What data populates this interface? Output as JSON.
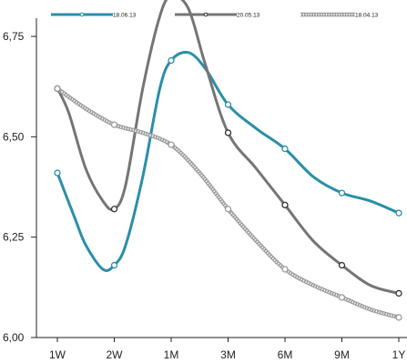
{
  "chart_data": {
    "type": "line",
    "categories": [
      "1W",
      "2W",
      "1M",
      "3M",
      "6M",
      "9M",
      "1Y"
    ],
    "ylim": [
      6.0,
      6.75
    ],
    "yticks": [
      "6,00",
      "6,25",
      "6,50",
      "6,75"
    ],
    "grid": false,
    "legend_position": "top",
    "series": [
      {
        "name": "18.06.13",
        "color": "#2a8fa8",
        "style": "solid",
        "values": [
          6.41,
          6.18,
          6.69,
          6.58,
          6.47,
          6.36,
          6.31
        ],
        "curve": [
          [
            0,
            6.41
          ],
          [
            0.3,
            6.3
          ],
          [
            0.5,
            6.23
          ],
          [
            0.8,
            6.17
          ],
          [
            1.0,
            6.18
          ],
          [
            1.2,
            6.23
          ],
          [
            1.5,
            6.4
          ],
          [
            1.8,
            6.62
          ],
          [
            2.0,
            6.69
          ],
          [
            2.3,
            6.71
          ],
          [
            2.6,
            6.67
          ],
          [
            3.0,
            6.58
          ],
          [
            3.5,
            6.52
          ],
          [
            4.0,
            6.47
          ],
          [
            4.5,
            6.4
          ],
          [
            5.0,
            6.36
          ],
          [
            5.5,
            6.34
          ],
          [
            6.0,
            6.31
          ]
        ]
      },
      {
        "name": "20.05.13",
        "color": "#757575",
        "style": "solid",
        "values": [
          6.62,
          6.32,
          6.85,
          6.51,
          6.33,
          6.18,
          6.11
        ],
        "curve": [
          [
            0,
            6.62
          ],
          [
            0.2,
            6.56
          ],
          [
            0.5,
            6.42
          ],
          [
            0.8,
            6.34
          ],
          [
            1.0,
            6.32
          ],
          [
            1.2,
            6.38
          ],
          [
            1.5,
            6.62
          ],
          [
            1.8,
            6.8
          ],
          [
            2.0,
            6.85
          ],
          [
            2.3,
            6.82
          ],
          [
            2.6,
            6.68
          ],
          [
            3.0,
            6.51
          ],
          [
            3.5,
            6.42
          ],
          [
            4.0,
            6.33
          ],
          [
            4.5,
            6.24
          ],
          [
            5.0,
            6.18
          ],
          [
            5.5,
            6.13
          ],
          [
            6.0,
            6.11
          ]
        ]
      },
      {
        "name": "18.04.13",
        "color": "#9a9a9a",
        "style": "hatched",
        "values": [
          6.62,
          6.53,
          6.48,
          6.32,
          6.17,
          6.1,
          6.05
        ],
        "curve": [
          [
            0,
            6.62
          ],
          [
            0.5,
            6.57
          ],
          [
            1.0,
            6.53
          ],
          [
            1.5,
            6.51
          ],
          [
            2.0,
            6.48
          ],
          [
            2.5,
            6.41
          ],
          [
            3.0,
            6.32
          ],
          [
            3.5,
            6.24
          ],
          [
            4.0,
            6.17
          ],
          [
            4.5,
            6.13
          ],
          [
            5.0,
            6.1
          ],
          [
            5.5,
            6.07
          ],
          [
            6.0,
            6.05
          ]
        ]
      }
    ]
  }
}
